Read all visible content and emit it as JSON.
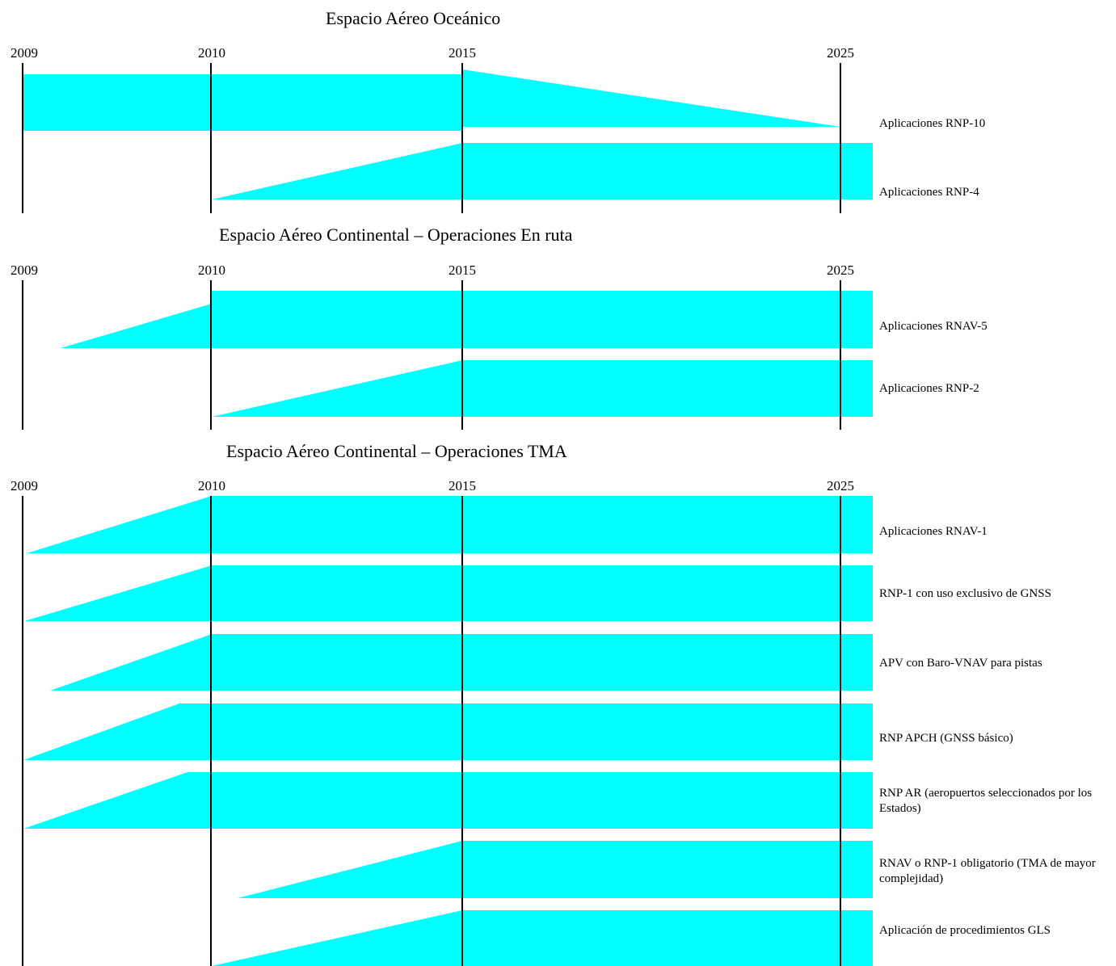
{
  "colors": {
    "bar_fill": "#00ffff",
    "line": "#000000"
  },
  "sections": [
    {
      "title": "Espacio Aéreo Oceánico",
      "years": [
        "2009",
        "2010",
        "2015",
        "2025"
      ],
      "rows": [
        {
          "label": "Aplicaciones RNP-10",
          "shape": "phase-out"
        },
        {
          "label": "Aplicaciones RNP-4",
          "shape": "ramp-up"
        }
      ]
    },
    {
      "title": "Espacio Aéreo Continental – Operaciones En ruta",
      "years": [
        "2009",
        "2010",
        "2015",
        "2025"
      ],
      "rows": [
        {
          "label": "Aplicaciones RNAV-5",
          "shape": "ramp-up"
        },
        {
          "label": "Aplicaciones RNP-2",
          "shape": "ramp-up"
        }
      ]
    },
    {
      "title": "Espacio Aéreo Continental – Operaciones TMA",
      "years": [
        "2009",
        "2010",
        "2015",
        "2025"
      ],
      "rows": [
        {
          "label": "Aplicaciones RNAV-1",
          "shape": "ramp-up"
        },
        {
          "label": "RNP-1 con uso exclusivo de GNSS",
          "shape": "ramp-up"
        },
        {
          "label": "APV con Baro-VNAV para pistas",
          "shape": "ramp-up"
        },
        {
          "label": "RNP APCH (GNSS básico)",
          "shape": "ramp-up"
        },
        {
          "label": "RNP AR (aeropuertos seleccionados por los Estados)",
          "shape": "ramp-up"
        },
        {
          "label": "RNAV o RNP-1 obligatorio (TMA de mayor complejidad)",
          "shape": "ramp-up"
        },
        {
          "label": "Aplicación de procedimientos GLS",
          "shape": "ramp-up"
        }
      ]
    }
  ]
}
